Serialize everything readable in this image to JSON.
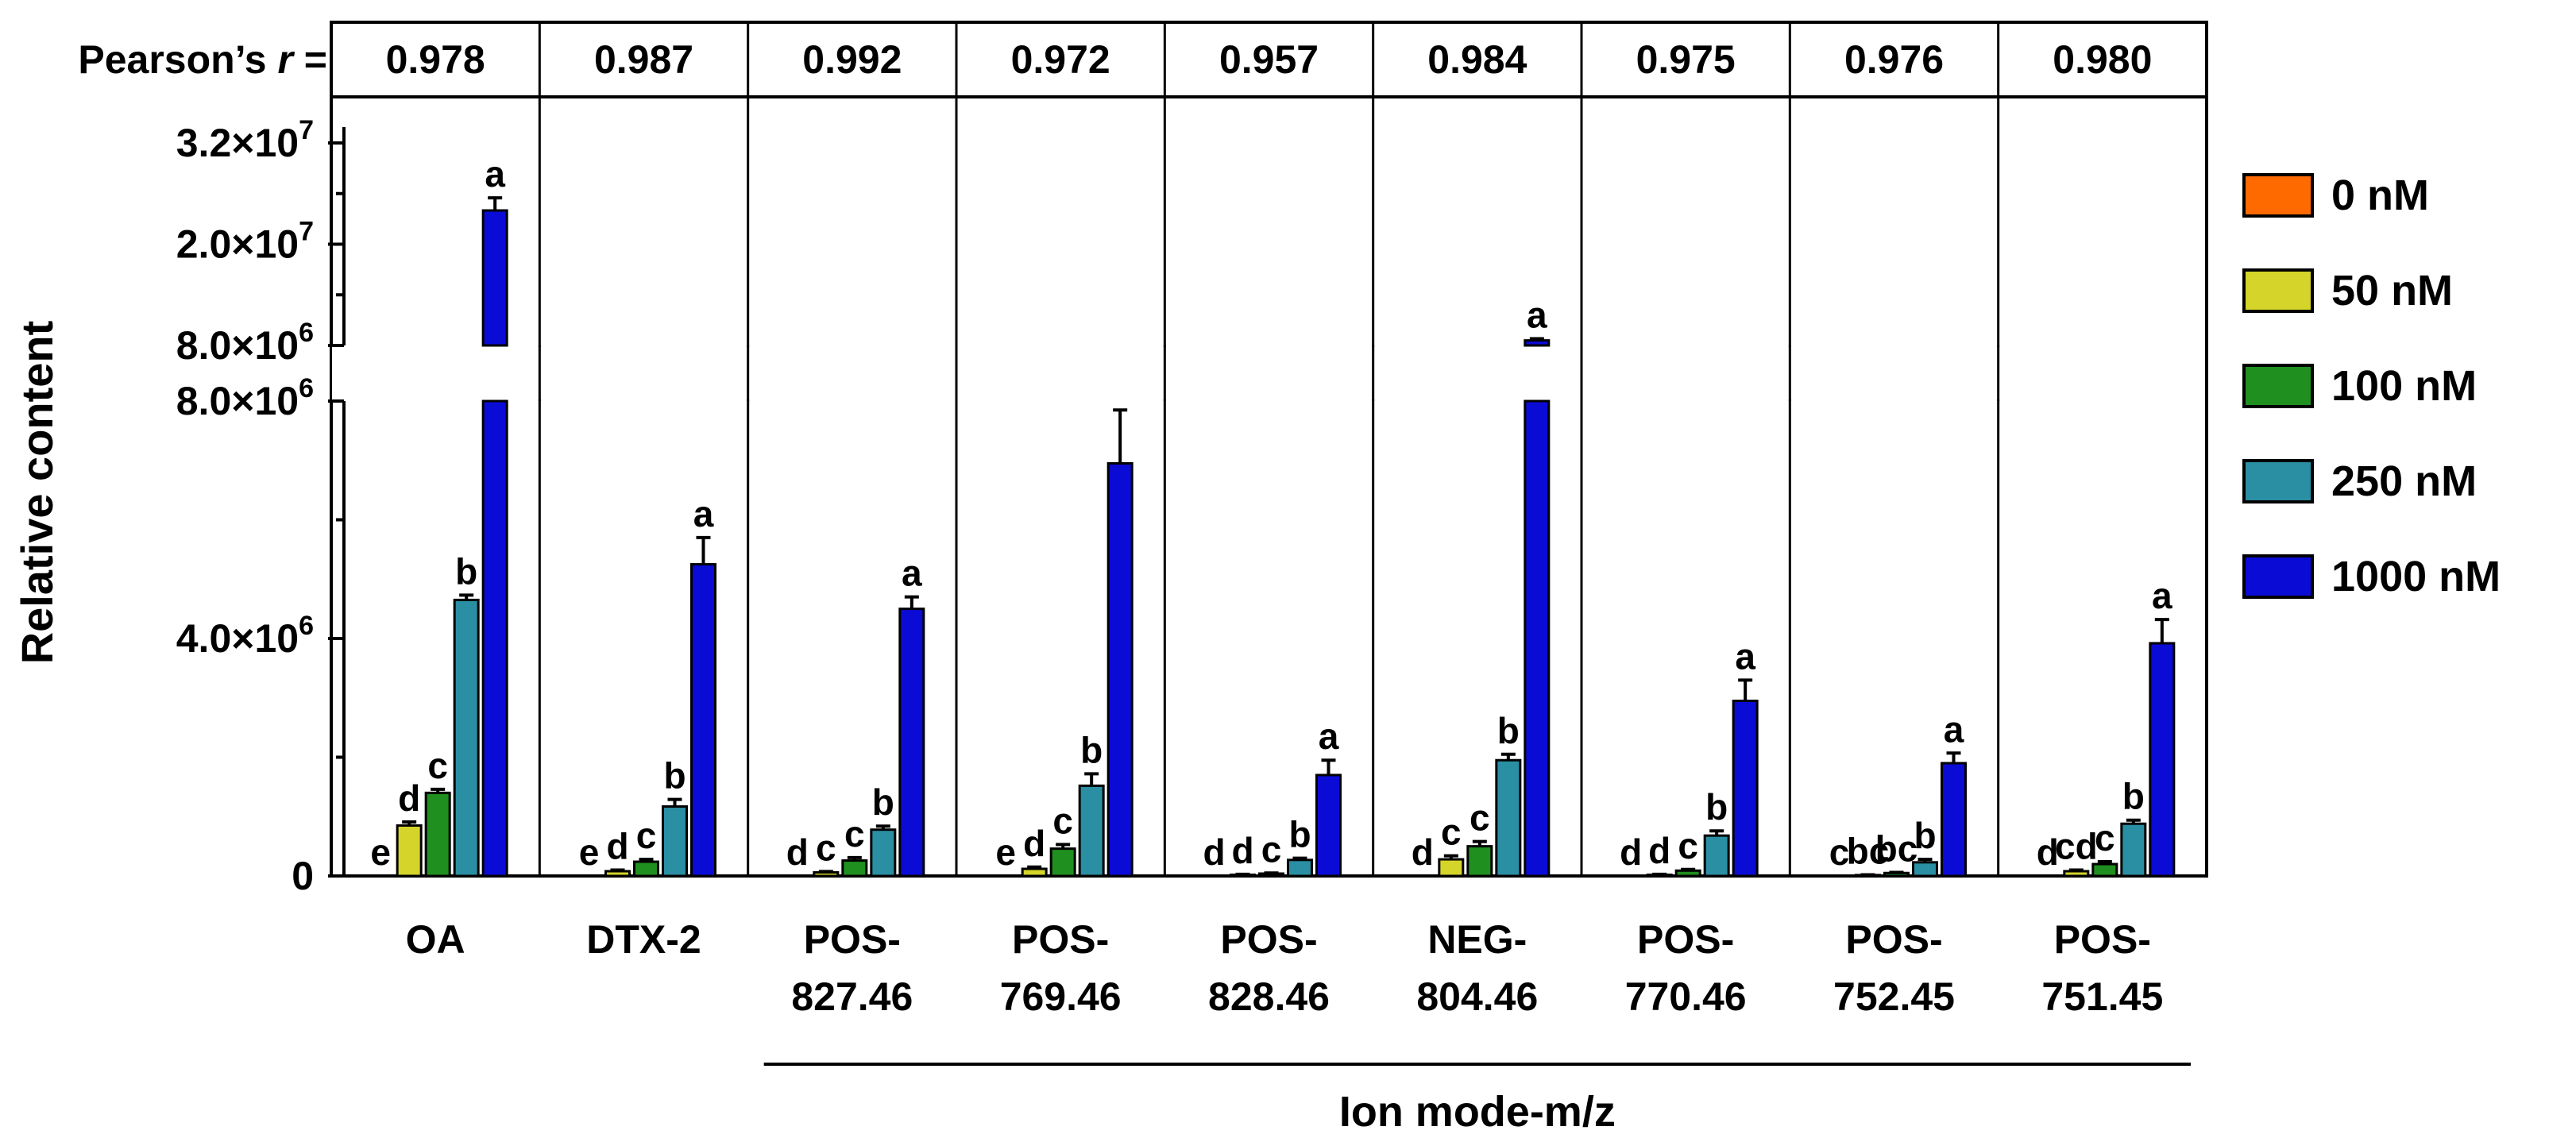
{
  "chart_data": {
    "type": "bar",
    "ylabel": "Relative content",
    "xlabel": "Ion mode-m/z",
    "pearson_label": "Pearson’s",
    "pearson_symbol": "r",
    "pearson_equals": "=",
    "categories": [
      {
        "name": "OA",
        "line1": "OA",
        "line2": "",
        "pearson": "0.978"
      },
      {
        "name": "DTX-2",
        "line1": "DTX-2",
        "line2": "",
        "pearson": "0.987"
      },
      {
        "name": "POS-827.46",
        "line1": "POS-",
        "line2": "827.46",
        "pearson": "0.992"
      },
      {
        "name": "POS-769.46",
        "line1": "POS-",
        "line2": "769.46",
        "pearson": "0.972"
      },
      {
        "name": "POS-828.46",
        "line1": "POS-",
        "line2": "828.46",
        "pearson": "0.957"
      },
      {
        "name": "NEG-804.46",
        "line1": "NEG-",
        "line2": "804.46",
        "pearson": "0.984"
      },
      {
        "name": "POS-770.46",
        "line1": "POS-",
        "line2": "770.46",
        "pearson": "0.975"
      },
      {
        "name": "POS-752.45",
        "line1": "POS-",
        "line2": "752.45",
        "pearson": "0.976"
      },
      {
        "name": "POS-751.45",
        "line1": "POS-",
        "line2": "751.45",
        "pearson": "0.980"
      }
    ],
    "series": [
      {
        "name": "0 nM",
        "color": "#ff6a00",
        "values": [
          0,
          0,
          0,
          0,
          0,
          0,
          0,
          0,
          0
        ],
        "errors": [
          0,
          0,
          0,
          0,
          0,
          0,
          0,
          0,
          0
        ],
        "letters": [
          "e",
          "e",
          "d",
          "e",
          "d",
          "d",
          "d",
          "c",
          "d"
        ]
      },
      {
        "name": "50 nM",
        "color": "#d4d42a",
        "values": [
          850000,
          80000,
          60000,
          120000,
          20000,
          280000,
          20000,
          15000,
          80000
        ],
        "errors": [
          60000,
          20000,
          15000,
          30000,
          8000,
          60000,
          8000,
          5000,
          20000
        ],
        "letters": [
          "d",
          "d",
          "c",
          "d",
          "d",
          "c",
          "d",
          "bc",
          "cd"
        ]
      },
      {
        "name": "100 nM",
        "color": "#1f8f1f",
        "values": [
          1400000,
          240000,
          260000,
          460000,
          40000,
          500000,
          90000,
          50000,
          200000
        ],
        "errors": [
          60000,
          40000,
          50000,
          70000,
          10000,
          80000,
          20000,
          10000,
          40000
        ],
        "letters": [
          "c",
          "c",
          "c",
          "c",
          "c",
          "c",
          "c",
          "bc",
          "c"
        ]
      },
      {
        "name": "250 nM",
        "color": "#2a8fa3",
        "values": [
          4650000,
          1170000,
          780000,
          1520000,
          270000,
          1950000,
          680000,
          230000,
          880000
        ],
        "errors": [
          80000,
          120000,
          60000,
          200000,
          30000,
          100000,
          80000,
          50000,
          60000
        ],
        "letters": [
          "b",
          "b",
          "b",
          "b",
          "b",
          "b",
          "b",
          "b",
          "b"
        ]
      },
      {
        "name": "1000 nM",
        "color": "#0b0bd6",
        "values": [
          24000000,
          5250000,
          4500000,
          6950000,
          1700000,
          8600000,
          2950000,
          1900000,
          3920000
        ],
        "errors": [
          1500000,
          450000,
          200000,
          900000,
          250000,
          200000,
          350000,
          170000,
          400000
        ],
        "letters": [
          "a",
          "a",
          "a",
          "a",
          "a",
          "a",
          "a",
          "a",
          "a"
        ]
      }
    ],
    "y_axis": {
      "lower_range": [
        0,
        8000000
      ],
      "upper_range": [
        8000000,
        32000000
      ],
      "lower_ticks": [
        {
          "value": 0,
          "label": "0",
          "sup": ""
        },
        {
          "value": 4000000,
          "label": "4.0×10",
          "sup": "6"
        },
        {
          "value": 8000000,
          "label": "8.0×10",
          "sup": "6"
        }
      ],
      "upper_ticks": [
        {
          "value": 8000000,
          "label": "8.0×10",
          "sup": "6"
        },
        {
          "value": 20000000,
          "label": "2.0×10",
          "sup": "7"
        },
        {
          "value": 32000000,
          "label": "3.2×10",
          "sup": "7"
        }
      ]
    },
    "legend_position": "right"
  }
}
